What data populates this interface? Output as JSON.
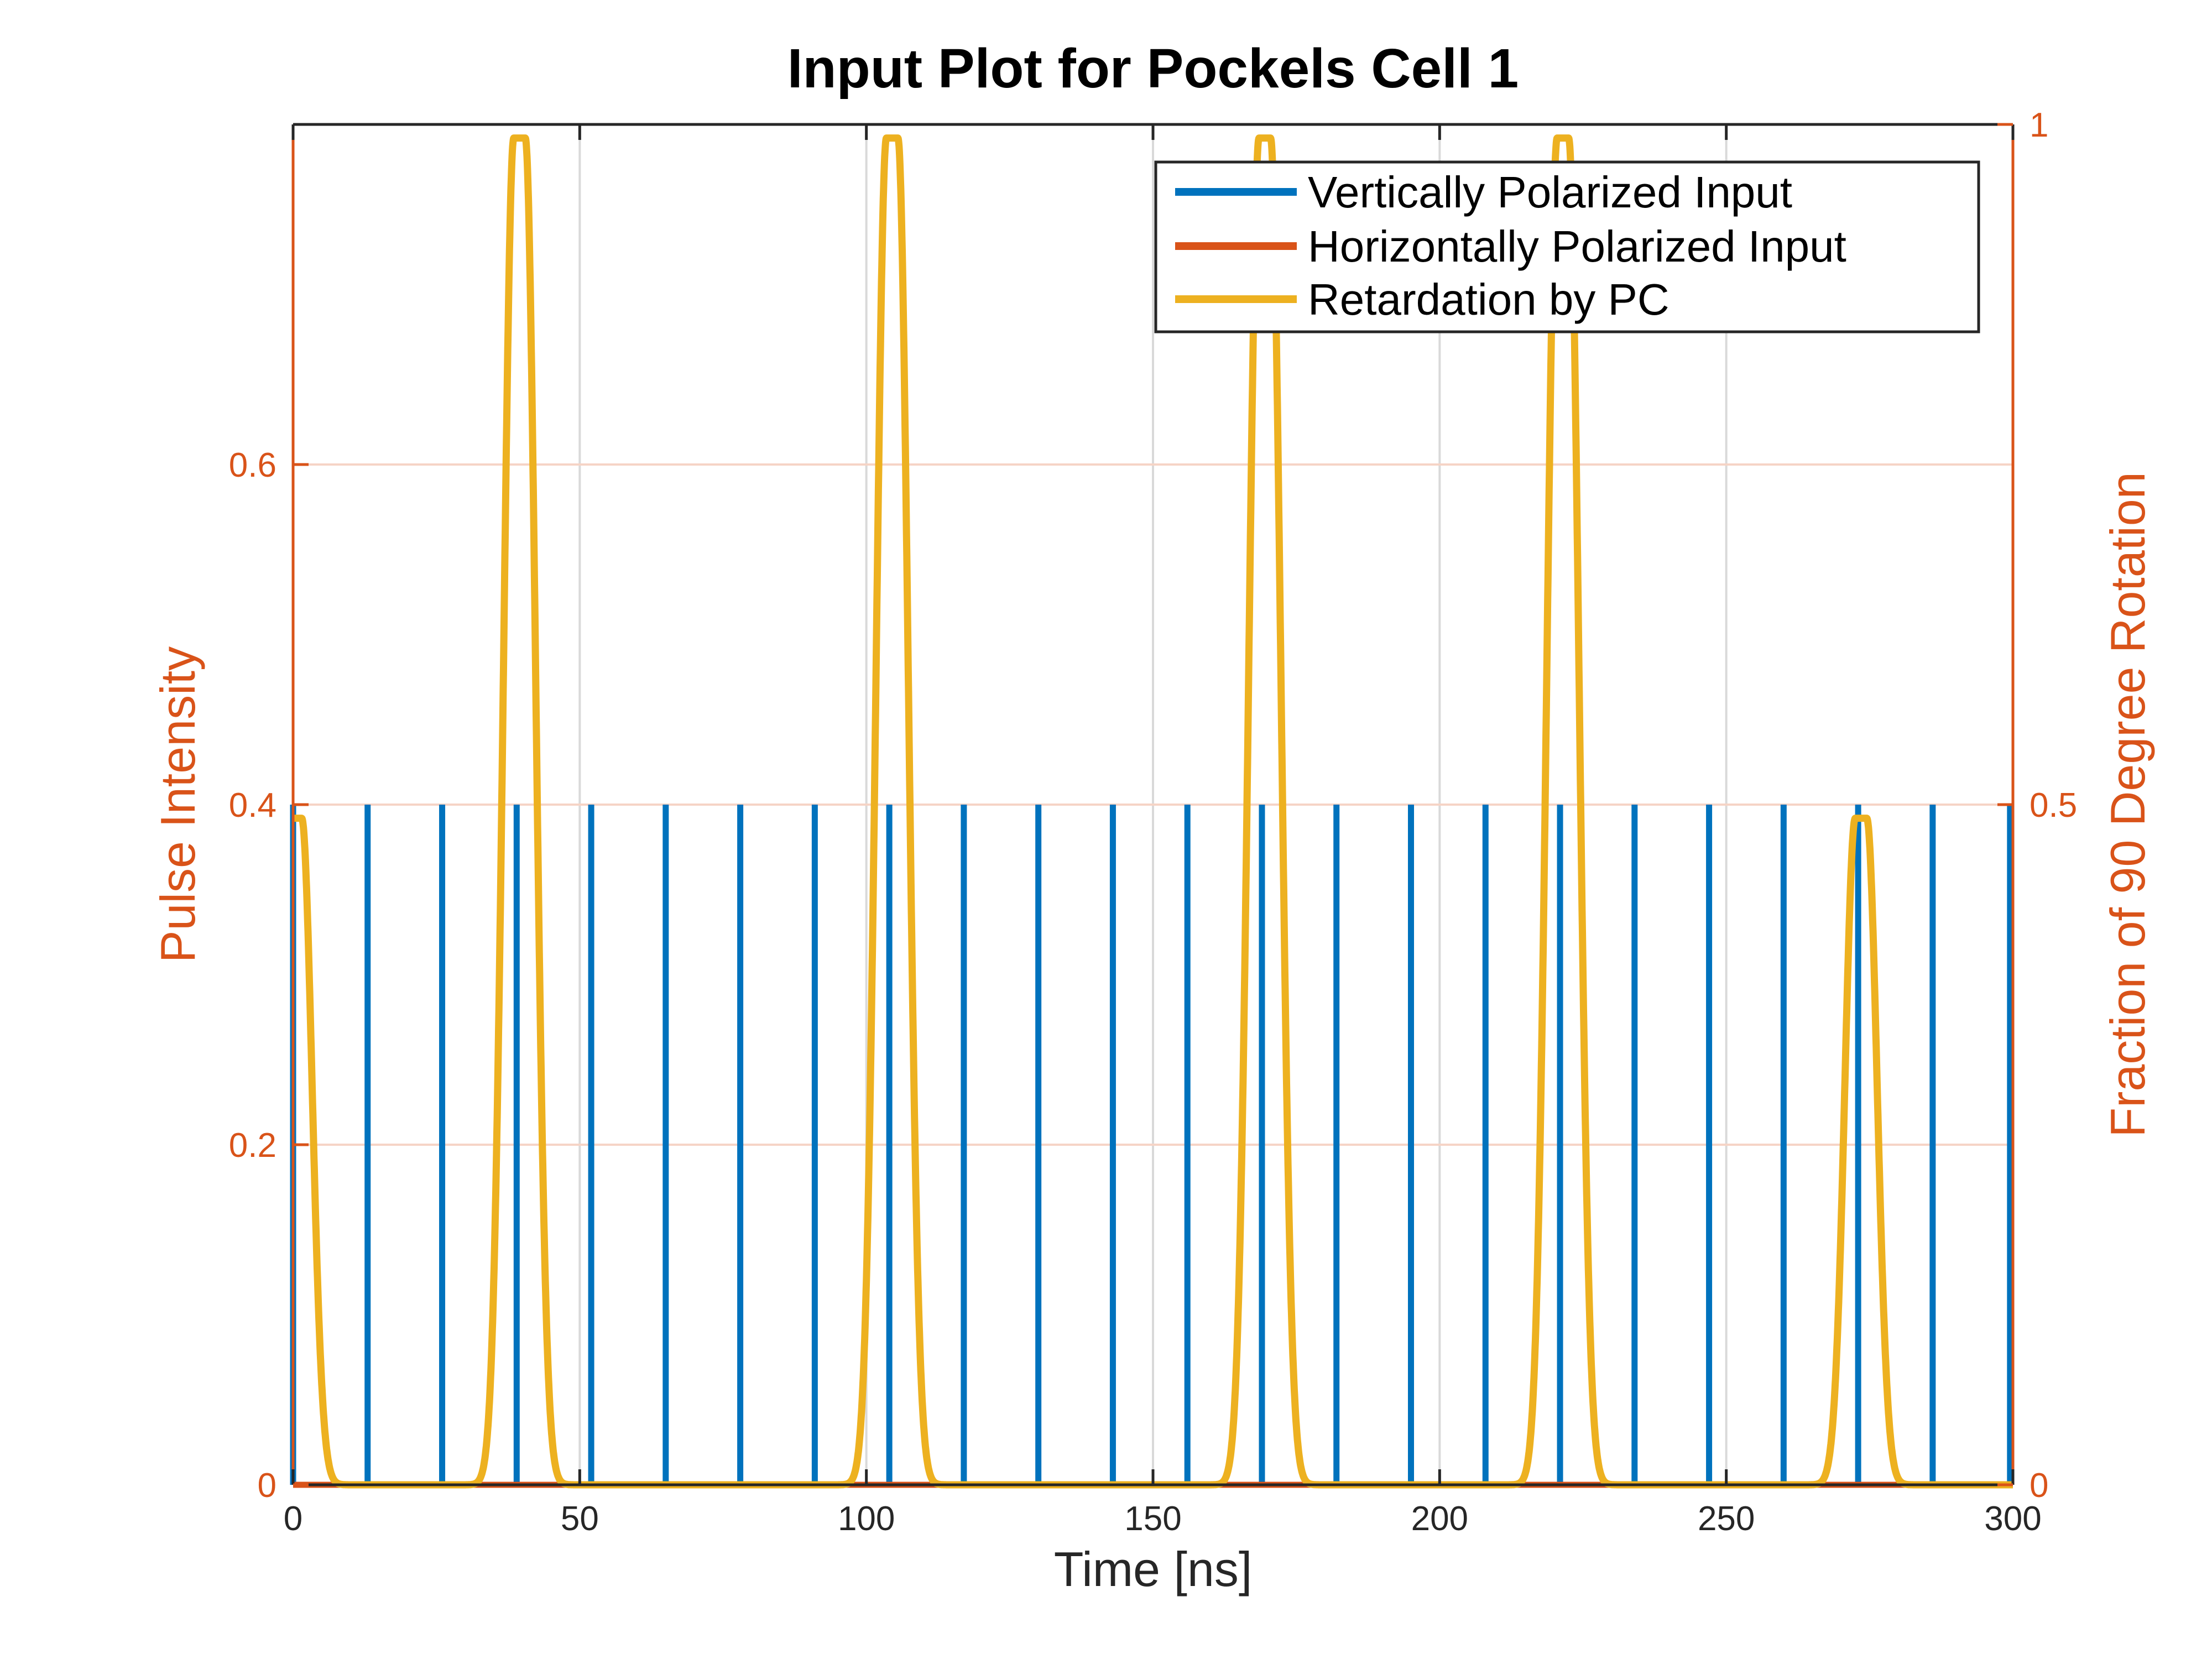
{
  "chart_data": {
    "type": "line",
    "title": "Input Plot for Pockels Cell 1",
    "xlabel": "Time [ns]",
    "ylabel": "Pulse Intensity",
    "ylabel_right": "Fraction of 90 Degree Rotation",
    "xlim": [
      0,
      300
    ],
    "ylim": [
      0,
      0.8
    ],
    "ylim_right": [
      0,
      1
    ],
    "xticks": [
      0,
      50,
      100,
      150,
      200,
      250,
      300
    ],
    "xtick_labels": [
      "0",
      "50",
      "100",
      "150",
      "200",
      "250",
      "300"
    ],
    "yticks": [
      0,
      0.2,
      0.4,
      0.6
    ],
    "ytick_labels": [
      "0",
      "0.2",
      "0.4",
      "0.6"
    ],
    "yticks_right": [
      0,
      0.5,
      1
    ],
    "ytick_labels_right": [
      "0",
      "0.5",
      "1"
    ],
    "grid": true,
    "legend_position": "top-right",
    "colors": {
      "vertical": "#0072bd",
      "horizontal": "#d95319",
      "retardation": "#edb120",
      "axis_left": "#d95319",
      "axis_right": "#d95319",
      "grid": "#d9d9d9"
    },
    "series": [
      {
        "name": "Vertically Polarized Input",
        "style": "impulses",
        "axis": "left",
        "x": [
          0,
          13,
          26,
          39,
          52,
          65,
          78,
          91,
          104,
          117,
          130,
          143,
          156,
          169,
          182,
          195,
          208,
          221,
          234,
          247,
          260,
          273,
          286,
          299.5
        ],
        "y": [
          0.4,
          0.4,
          0.4,
          0.4,
          0.4,
          0.4,
          0.4,
          0.4,
          0.4,
          0.4,
          0.4,
          0.4,
          0.4,
          0.4,
          0.4,
          0.4,
          0.4,
          0.4,
          0.4,
          0.4,
          0.4,
          0.4,
          0.4,
          0.4
        ]
      },
      {
        "name": "Horizontally Polarized Input",
        "style": "line",
        "axis": "left",
        "x": [
          0,
          300
        ],
        "y": [
          0,
          0
        ]
      },
      {
        "name": "Retardation by PC",
        "style": "pulses",
        "axis": "right",
        "pulses": [
          {
            "center": 0.5,
            "amplitude": 0.49,
            "halfwidth": 1
          },
          {
            "center": 39.5,
            "amplitude": 0.99,
            "halfwidth": 1
          },
          {
            "center": 104.5,
            "amplitude": 0.99,
            "halfwidth": 1
          },
          {
            "center": 169.5,
            "amplitude": 0.99,
            "halfwidth": 1
          },
          {
            "center": 221.5,
            "amplitude": 0.99,
            "halfwidth": 1
          },
          {
            "center": 273.5,
            "amplitude": 0.49,
            "halfwidth": 1
          }
        ],
        "edge_sigma": 1.8
      }
    ]
  }
}
